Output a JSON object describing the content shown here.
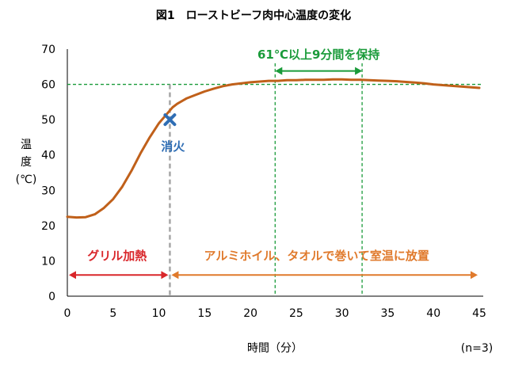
{
  "chart_data": {
    "type": "line",
    "title": "図1　ローストビーフ肉中心温度の変化",
    "xlabel": "時間（分）",
    "ylabel_lines": [
      "温",
      "度",
      "(℃)"
    ],
    "note": "(n=3)",
    "xlim": [
      0,
      45
    ],
    "ylim": [
      0,
      70
    ],
    "xticks": [
      0,
      5,
      10,
      15,
      20,
      25,
      30,
      35,
      40,
      45
    ],
    "yticks": [
      0,
      10,
      20,
      30,
      40,
      50,
      60,
      70
    ],
    "grid": false,
    "series": [
      {
        "color": "#c0601a",
        "x": [
          0,
          1,
          2,
          3,
          4,
          5,
          6,
          7,
          8,
          9,
          10,
          11,
          11.5,
          12,
          13,
          14,
          15,
          16,
          17,
          18,
          19,
          20,
          21,
          22,
          23,
          24,
          25,
          26,
          27,
          28,
          29,
          30,
          31,
          32,
          33,
          34,
          35,
          36,
          37,
          38,
          39,
          40,
          41,
          42,
          43,
          44,
          45
        ],
        "y": [
          22.5,
          22.3,
          22.4,
          23.2,
          25,
          27.5,
          31,
          35.5,
          40.5,
          45,
          49,
          52,
          53.5,
          54.5,
          56,
          57,
          58,
          58.8,
          59.5,
          60,
          60.3,
          60.6,
          60.8,
          61,
          61,
          61.2,
          61.2,
          61.3,
          61.3,
          61.3,
          61.4,
          61.4,
          61.3,
          61.3,
          61.2,
          61.1,
          61,
          60.9,
          60.7,
          60.5,
          60.3,
          60,
          59.8,
          59.6,
          59.4,
          59.2,
          59
        ]
      }
    ],
    "reference_line": {
      "y": 60,
      "color": "#1a9b3a"
    },
    "events": {
      "fire_off": {
        "x": 11.2,
        "y": 50,
        "label": "消火",
        "color": "#2e6db4",
        "line_color": "#a6a6a6"
      },
      "hold_range": {
        "x_start": 22.7,
        "x_end": 32.2,
        "label": "61℃以上9分間を保持",
        "color": "#1a9b3a"
      },
      "phase_grill": {
        "x_start": 0,
        "x_end": 11.2,
        "label": "グリル加熱",
        "color": "#d9262a"
      },
      "phase_rest": {
        "x_start": 11.2,
        "x_end": 45,
        "label": "アルミホイル、タオルで巻いて室温に放置",
        "color": "#e07a2c"
      }
    }
  }
}
